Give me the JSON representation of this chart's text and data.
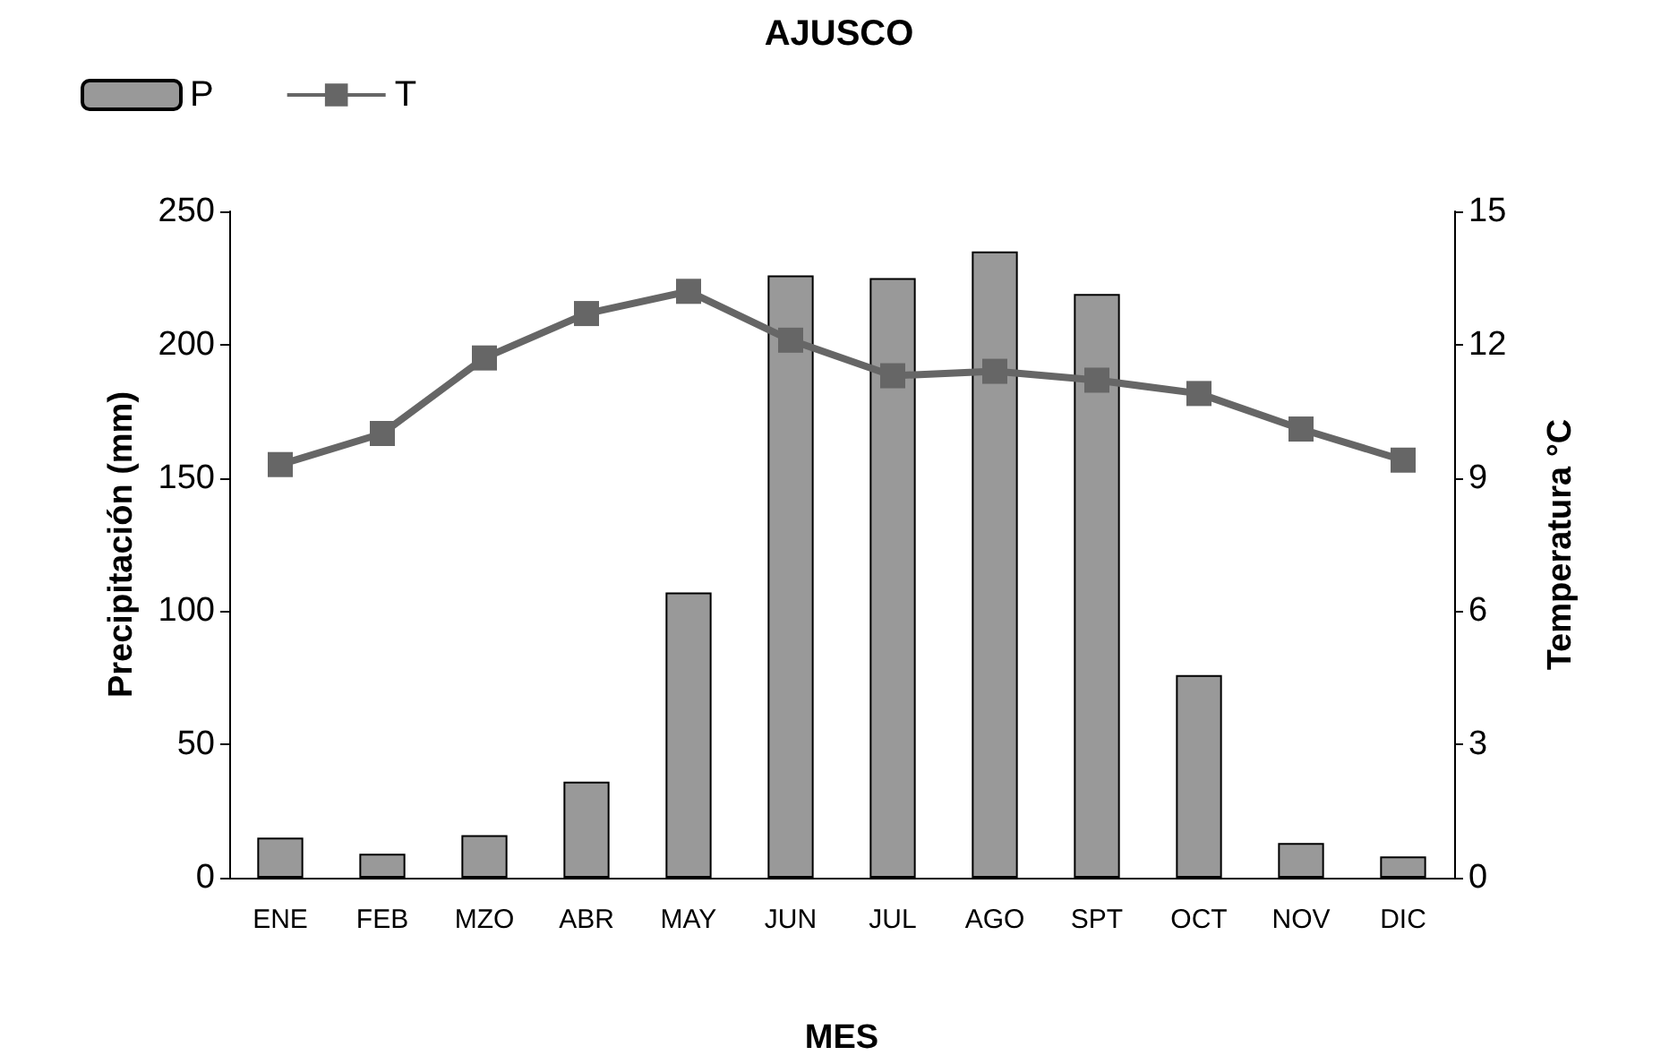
{
  "chart_data": {
    "type": "bar",
    "title": "AJUSCO",
    "xlabel": "MES",
    "ylabel": "Precipitación (mm)",
    "y2label": "Temperatura °C",
    "categories": [
      "ENE",
      "FEB",
      "MZO",
      "ABR",
      "MAY",
      "JUN",
      "JUL",
      "AGO",
      "SPT",
      "OCT",
      "NOV",
      "DIC"
    ],
    "series": [
      {
        "name": "P",
        "color": "#999999",
        "values": [
          15,
          9,
          16,
          36,
          107,
          226,
          225,
          235,
          219,
          76,
          13,
          8
        ]
      },
      {
        "name": "T",
        "type": "line",
        "axis": "y2",
        "color": "#666666",
        "values": [
          9.3,
          10,
          11.7,
          12.7,
          13.2,
          12.1,
          11.3,
          11.4,
          11.2,
          10.9,
          10.1,
          9.4
        ]
      }
    ],
    "ylim": [
      0,
      250
    ],
    "yticks": [
      0,
      50,
      100,
      150,
      200,
      250
    ],
    "y2lim": [
      0,
      15
    ],
    "y2ticks": [
      0,
      3,
      6,
      9,
      12,
      15
    ],
    "grid": false,
    "legend": "top left",
    "marker": "square",
    "line_style": "solid"
  }
}
